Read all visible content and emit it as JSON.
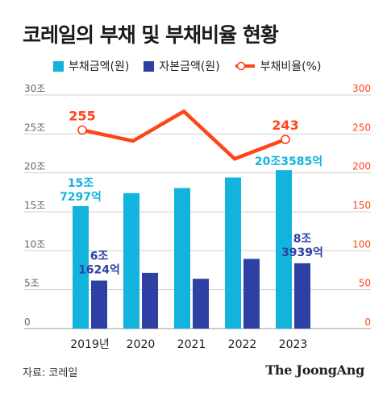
{
  "title": "코레일의 부채 및 부채비율 현황",
  "legend": {
    "debt": "부채금액(원)",
    "capital": "자본금액(원)",
    "ratio": "부채비율(%)"
  },
  "colors": {
    "debt": "#12b3dc",
    "capital": "#2e40a3",
    "ratio": "#ff4517",
    "axis_text": "#666666",
    "grid": "#d0d0d0"
  },
  "source": "자료: 코레일",
  "brand": "The JoongAng",
  "chart_data": {
    "type": "bar",
    "categories": [
      "2019년",
      "2020",
      "2021",
      "2022",
      "2023"
    ],
    "series": [
      {
        "name": "부채금액(원)",
        "type": "bar",
        "axis": "left",
        "values": [
          15.73,
          17.4,
          18.05,
          19.4,
          20.36
        ]
      },
      {
        "name": "자본금액(원)",
        "type": "bar",
        "axis": "left",
        "values": [
          6.16,
          7.15,
          6.4,
          8.95,
          8.39
        ]
      },
      {
        "name": "부채비율(%)",
        "type": "line",
        "axis": "right",
        "values": [
          255,
          241,
          279,
          218,
          243
        ]
      }
    ],
    "left_axis": {
      "ylim": [
        0,
        30
      ],
      "ticks": [
        "0",
        "5조",
        "10조",
        "15조",
        "20조",
        "25조",
        "30조"
      ]
    },
    "right_axis": {
      "ylim": [
        0,
        300
      ],
      "ticks": [
        "0",
        "50",
        "100",
        "150",
        "200",
        "250",
        "300"
      ]
    },
    "annotations": {
      "debt_first": [
        "15조",
        "7297억"
      ],
      "debt_last": "20조3585억",
      "capital_first": [
        "6조",
        "1624억"
      ],
      "capital_last": [
        "8조",
        "3939억"
      ],
      "ratio_first": "255",
      "ratio_last": "243"
    },
    "grid": true
  }
}
